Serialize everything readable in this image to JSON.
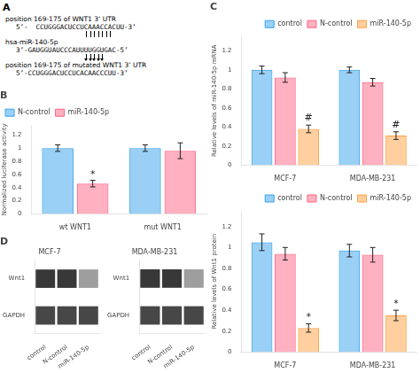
{
  "chart_data": [
    {
      "type": "text",
      "title": "A",
      "annotations": [
        "position 169-175 of WNT1 3’ UTR",
        "5’-  CCUGGGACUCCUCAAACCACUU-3’",
        "hsa-miR-140-5p",
        "3’-GAUGGUAUCCCAUUUUGGUGAC-5’",
        "position 169-175 of mutated WNT1 3’ UTR",
        "5’-CCUGGGACUCCUCACAACCCUU-3’"
      ]
    },
    {
      "type": "bar",
      "title": "B",
      "categories": [
        "wt WNT1",
        "mut WNT1"
      ],
      "series": [
        {
          "name": "N-control",
          "values": [
            1.0,
            1.0
          ],
          "errors": [
            0.05,
            0.05
          ]
        },
        {
          "name": "miR-140-5p",
          "values": [
            0.46,
            0.96
          ],
          "errors": [
            0.05,
            0.12
          ]
        }
      ],
      "ylabel": "Normalized luciferase activity",
      "ylim": [
        0,
        1.35
      ],
      "yticks": [
        0,
        0.2,
        0.4,
        0.6,
        0.8,
        1.0,
        1.2
      ],
      "grid": false,
      "legend": "upper left",
      "annotations": [
        {
          "text": "*",
          "x": "wt WNT1",
          "series": "miR-140-5p",
          "y": 0.52
        }
      ]
    },
    {
      "type": "bar",
      "title": "C",
      "categories": [
        "MCF-7",
        "MDA-MB-231"
      ],
      "series": [
        {
          "name": "control",
          "values": [
            1.0,
            1.0
          ],
          "errors": [
            0.04,
            0.03
          ]
        },
        {
          "name": "N-control",
          "values": [
            0.92,
            0.87
          ],
          "errors": [
            0.05,
            0.04
          ]
        },
        {
          "name": "miR-140-5p",
          "values": [
            0.38,
            0.31
          ],
          "errors": [
            0.04,
            0.04
          ]
        }
      ],
      "ylabel": "Relative levels of miR-140-5p mRNA",
      "ylim": [
        0,
        1.35
      ],
      "yticks": [
        0,
        0.2,
        0.4,
        0.6,
        0.8,
        1.0,
        1.2
      ],
      "grid": false,
      "legend": "upper right",
      "annotations": [
        {
          "text": "#",
          "x": "MCF-7",
          "series": "miR-140-5p",
          "y": 0.44
        },
        {
          "text": "#",
          "x": "MDA-MB-231",
          "series": "miR-140-5p",
          "y": 0.37
        }
      ]
    },
    {
      "type": "heatmap",
      "title": "D",
      "subtitle": "MCF-7",
      "categories": [
        "control",
        "N-control",
        "miR-140-5p"
      ],
      "series": [
        {
          "name": "Wnt1",
          "values": [
            0.22,
            0.22,
            0.62
          ]
        },
        {
          "name": "GAPDH",
          "values": [
            0.28,
            0.28,
            0.28
          ]
        }
      ]
    },
    {
      "type": "heatmap",
      "subtitle": "MDA-MB-231",
      "categories": [
        "control",
        "N-control",
        "miR-140-5p"
      ],
      "series": [
        {
          "name": "Wnt1",
          "values": [
            0.22,
            0.22,
            0.62
          ]
        },
        {
          "name": "GAPDH",
          "values": [
            0.28,
            0.28,
            0.28
          ]
        }
      ]
    },
    {
      "type": "bar",
      "categories": [
        "MCF-7",
        "MDA-MB-231"
      ],
      "series": [
        {
          "name": "control",
          "values": [
            1.05,
            0.97
          ],
          "errors": [
            0.08,
            0.06
          ]
        },
        {
          "name": "N-control",
          "values": [
            0.94,
            0.93
          ],
          "errors": [
            0.06,
            0.07
          ]
        },
        {
          "name": "miR-140-5p",
          "values": [
            0.23,
            0.35
          ],
          "errors": [
            0.04,
            0.05
          ]
        }
      ],
      "ylabel": "Relative levels of Wnt1 protein",
      "ylim": [
        0,
        1.35
      ],
      "yticks": [
        0,
        0.2,
        0.4,
        0.6,
        0.8,
        1.0,
        1.2
      ],
      "grid": false,
      "legend": "upper right",
      "annotations": [
        {
          "text": "*",
          "x": "MCF-7",
          "series": "miR-140-5p",
          "y": 0.29
        },
        {
          "text": "*",
          "x": "MDA-MB-231",
          "series": "miR-140-5p",
          "y": 0.41
        }
      ]
    }
  ]
}
